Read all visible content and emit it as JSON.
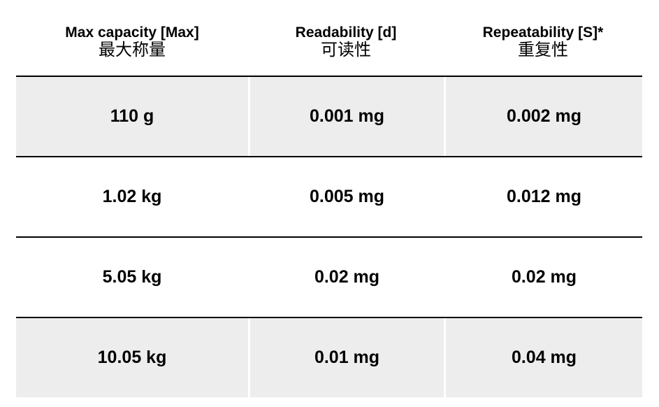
{
  "table": {
    "headers": [
      {
        "en": "Max capacity [Max]",
        "zh": "最大称量"
      },
      {
        "en": "Readability [d]",
        "zh": "可读性"
      },
      {
        "en": "Repeatability [S]*",
        "zh": "重复性"
      }
    ],
    "rows": [
      {
        "max_capacity": "110 g",
        "readability": "0.001 mg",
        "repeatability": "0.002 mg"
      },
      {
        "max_capacity": "1.02 kg",
        "readability": "0.005 mg",
        "repeatability": "0.012 mg"
      },
      {
        "max_capacity": "5.05 kg",
        "readability": "0.02 mg",
        "repeatability": "0.02 mg"
      },
      {
        "max_capacity": "10.05 kg",
        "readability": "0.01 mg",
        "repeatability": "0.04 mg"
      }
    ],
    "shaded_row_color": "#ededed",
    "rule_color": "#000000"
  }
}
